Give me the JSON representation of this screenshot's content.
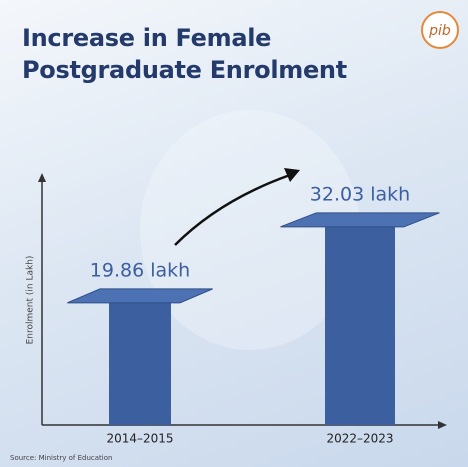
{
  "chart_data": {
    "type": "bar",
    "title": "Increase in Female Postgraduate Enrolment",
    "logo": "pib",
    "y_label": "Enrolment (in Lakh)",
    "source": "Source: Ministry of Education",
    "categories": [
      "2014–2015",
      "2022–2023"
    ],
    "values": [
      19.86,
      32.03
    ],
    "value_labels": [
      "19.86 lakh",
      "32.03 lakh"
    ],
    "color": "#3b5f9f",
    "ylim": [
      0,
      40
    ],
    "grid": false
  }
}
